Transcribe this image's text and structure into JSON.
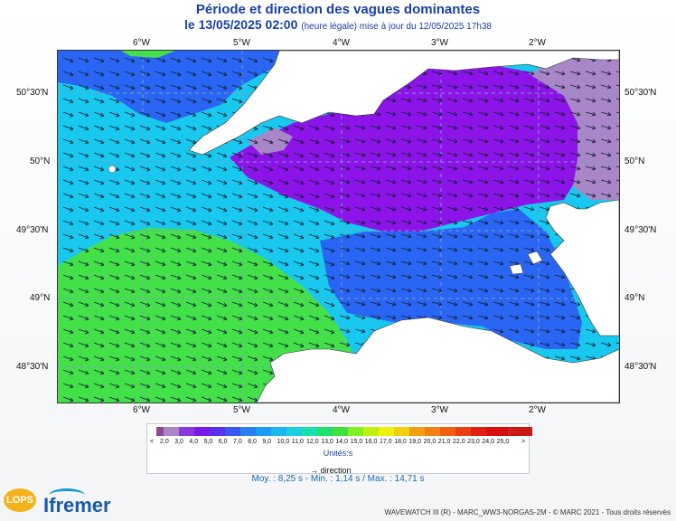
{
  "header": {
    "title": "Période et direction des vagues dominantes",
    "date": "le 13/05/2025 02:00",
    "note": "(heure légale) mise à jour du 12/05/2025 17h38"
  },
  "axes": {
    "top": [
      "6°W",
      "5°W",
      "4°W",
      "3°W",
      "2°W"
    ],
    "bottom": [
      "6°W",
      "5°W",
      "4°W",
      "3°W",
      "2°W"
    ],
    "left": [
      "50°30'N",
      "50°N",
      "49°30'N",
      "49°N",
      "48°30'N"
    ],
    "right": [
      "50°30'N",
      "50°N",
      "49°30'N",
      "49°N",
      "48°30'N"
    ]
  },
  "legend": {
    "min_symbol": "<",
    "max_symbol": ">",
    "labels": [
      "2,0",
      "3,0",
      "4,0",
      "5,0",
      "6,0",
      "7,0",
      "8,0",
      "9,0",
      "10,0",
      "11,0",
      "12,0",
      "13,0",
      "14,0",
      "15,0",
      "16,0",
      "17,0",
      "18,0",
      "19,0",
      "20,0",
      "21,0",
      "22,0",
      "23,0",
      "24,0",
      "25,0"
    ],
    "colors": [
      "#a986c6",
      "#8a3ad6",
      "#7a18e8",
      "#5a30f0",
      "#3a58f0",
      "#2a80f0",
      "#1a9cf0",
      "#1ab8f0",
      "#1ad0e0",
      "#1ae0b0",
      "#20e070",
      "#40e040",
      "#80f020",
      "#c0f010",
      "#f0f010",
      "#f0d010",
      "#f0a010",
      "#f08010",
      "#f06010",
      "#e84010",
      "#e02010",
      "#d81010",
      "#d01010",
      "#c81818"
    ],
    "unit": "Unités:s",
    "direction_label": "direction"
  },
  "stats": {
    "text": "Moy. : 8,25 s   -   Min. : 1,14 s / Max. : 14,71 s"
  },
  "footer": {
    "credit": "WAVEWATCH III (R) - MARC_WW3-NORGAS-2M - © MARC 2021 - Tous droits réservés",
    "logo_lops": "LOPS",
    "logo_ifremer": "Ifremer"
  },
  "colors": {
    "purple": "#8c14e8",
    "lavender": "#a886c8",
    "blue": "#2a66f4",
    "cyan": "#18c8ee",
    "teal": "#1ae0a0",
    "green": "#44e04a",
    "land": "#ffffff",
    "title": "#1a3fa6"
  }
}
